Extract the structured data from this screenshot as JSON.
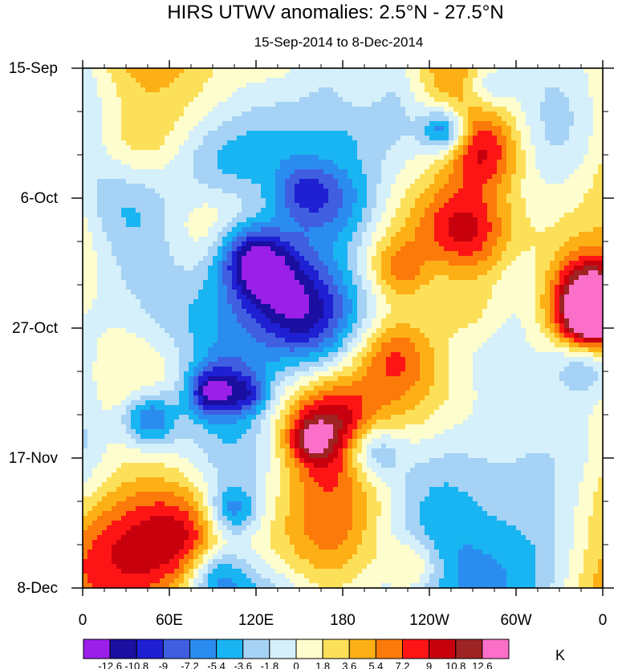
{
  "chart_data": {
    "type": "heatmap",
    "title": "HIRS UTWV anomalies: 2.5°N - 27.5°N",
    "subtitle": "15-Sep-2014 to 8-Dec-2014",
    "xlabel": "",
    "ylabel": "",
    "x_ticks": [
      "0",
      "60E",
      "120E",
      "180",
      "120W",
      "60W",
      "0"
    ],
    "x_range_deg_east": [
      0,
      360
    ],
    "y_ticks": [
      "15-Sep",
      "6-Oct",
      "27-Oct",
      "17-Nov",
      "8-Dec"
    ],
    "y_range_days": [
      0,
      84
    ],
    "colorbar": {
      "unit": "K",
      "levels": [
        "-12.6",
        "-10.8",
        "-9",
        "-7.2",
        "-5.4",
        "-3.6",
        "-1.8",
        "0",
        "1.8",
        "3.6",
        "5.4",
        "7.2",
        "9",
        "10.8",
        "12.6"
      ],
      "colors": [
        "#9b1fe8",
        "#1a0fa0",
        "#1f1fd4",
        "#3f5fe0",
        "#2b8cf0",
        "#19b5f2",
        "#a6d2f5",
        "#d5f0fa",
        "#fdfdcd",
        "#fde05a",
        "#fdb015",
        "#fb7a0a",
        "#fd1515",
        "#c8000d",
        "#9e2323",
        "#fb6fc8"
      ]
    }
  }
}
